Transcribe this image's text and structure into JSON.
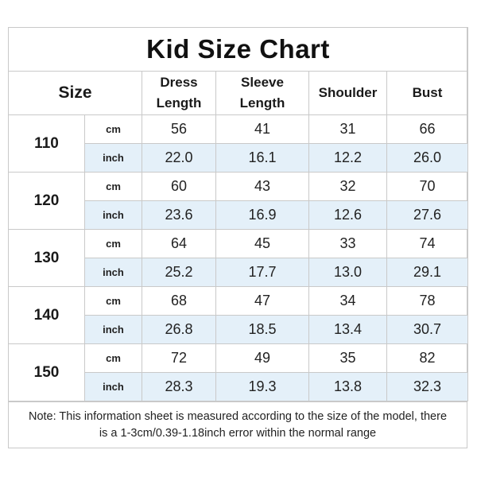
{
  "title": "Kid Size Chart",
  "headers": {
    "size": "Size",
    "dress_length_1": "Dress",
    "dress_length_2": "Length",
    "sleeve_length_1": "Sleeve",
    "sleeve_length_2": "Length",
    "shoulder": "Shoulder",
    "bust": "Bust"
  },
  "rows": [
    {
      "size": "110",
      "cm": {
        "unit": "cm",
        "values": [
          "56",
          "41",
          "31",
          "66"
        ]
      },
      "inch": {
        "unit": "inch",
        "values": [
          "22.0",
          "16.1",
          "12.2",
          "26.0"
        ]
      }
    },
    {
      "size": "120",
      "cm": {
        "unit": "cm",
        "values": [
          "60",
          "43",
          "32",
          "70"
        ]
      },
      "inch": {
        "unit": "inch",
        "values": [
          "23.6",
          "16.9",
          "12.6",
          "27.6"
        ]
      }
    },
    {
      "size": "130",
      "cm": {
        "unit": "cm",
        "values": [
          "64",
          "45",
          "33",
          "74"
        ]
      },
      "inch": {
        "unit": "inch",
        "values": [
          "25.2",
          "17.7",
          "13.0",
          "29.1"
        ]
      }
    },
    {
      "size": "140",
      "cm": {
        "unit": "cm",
        "values": [
          "68",
          "47",
          "34",
          "78"
        ]
      },
      "inch": {
        "unit": "inch",
        "values": [
          "26.8",
          "18.5",
          "13.4",
          "30.7"
        ]
      }
    },
    {
      "size": "150",
      "cm": {
        "unit": "cm",
        "values": [
          "72",
          "49",
          "35",
          "82"
        ]
      },
      "inch": {
        "unit": "inch",
        "values": [
          "28.3",
          "19.3",
          "13.8",
          "32.3"
        ]
      }
    }
  ],
  "note": "Note: This information sheet is measured according to the size of the model, there is a 1-3cm/0.39-1.18inch error within the normal range",
  "colors": {
    "inch_row_bg": "#e4f0f9",
    "border": "#c9c9c9"
  }
}
